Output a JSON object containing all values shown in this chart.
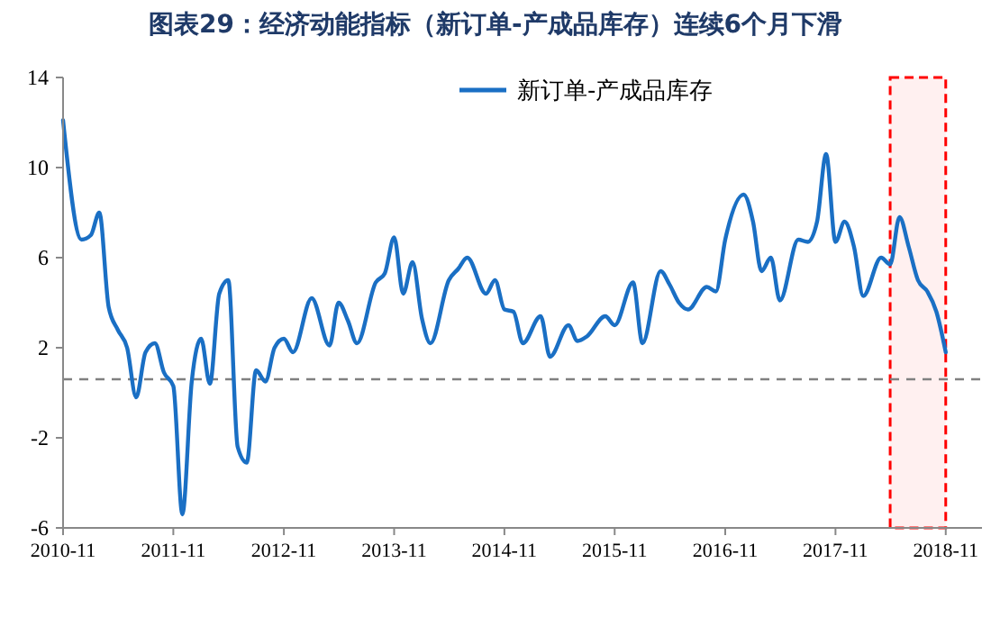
{
  "chart_data": {
    "type": "line",
    "title": "图表29：经济动能指标（新订单-产成品库存）连续6个月下滑",
    "x": [
      "2010-11",
      "2011-01",
      "2011-02",
      "2011-03",
      "2011-04",
      "2011-05",
      "2011-06",
      "2011-07",
      "2011-08",
      "2011-09",
      "2011-10",
      "2011-11",
      "2011-12",
      "2012-01",
      "2012-02",
      "2012-03",
      "2012-04",
      "2012-05",
      "2012-06",
      "2012-07",
      "2012-08",
      "2012-09",
      "2012-10",
      "2012-11",
      "2012-12",
      "2013-02",
      "2013-04",
      "2013-05",
      "2013-06",
      "2013-07",
      "2013-09",
      "2013-10",
      "2013-11",
      "2013-12",
      "2014-01",
      "2014-02",
      "2014-03",
      "2014-05",
      "2014-06",
      "2014-07",
      "2014-09",
      "2014-10",
      "2014-11",
      "2014-12",
      "2015-01",
      "2015-03",
      "2015-04",
      "2015-06",
      "2015-07",
      "2015-08",
      "2015-10",
      "2015-11",
      "2016-01",
      "2016-02",
      "2016-04",
      "2016-05",
      "2016-06",
      "2016-07",
      "2016-09",
      "2016-10",
      "2016-11",
      "2017-01",
      "2017-02",
      "2017-03",
      "2017-04",
      "2017-05",
      "2017-07",
      "2017-08",
      "2017-09",
      "2017-10",
      "2017-11",
      "2017-12",
      "2018-01",
      "2018-02",
      "2018-04",
      "2018-05",
      "2018-06",
      "2018-07",
      "2018-08",
      "2018-09",
      "2018-10",
      "2018-11"
    ],
    "series": [
      {
        "name": "新订单-产成品库存",
        "color": "#1a6fc4",
        "values": [
          12.1,
          6.8,
          7.0,
          8.0,
          3.8,
          2.8,
          2.0,
          -0.2,
          1.8,
          2.2,
          0.9,
          0.3,
          -5.4,
          0.5,
          2.4,
          0.4,
          4.4,
          5.0,
          -2.4,
          -3.1,
          1.0,
          0.5,
          2.0,
          2.4,
          1.8,
          4.2,
          2.1,
          4.0,
          3.2,
          2.2,
          4.9,
          5.3,
          6.9,
          4.4,
          5.8,
          3.3,
          2.2,
          5.0,
          5.5,
          6.0,
          4.4,
          5.0,
          3.7,
          3.6,
          2.2,
          3.4,
          1.6,
          3.0,
          2.3,
          2.5,
          3.4,
          3.0,
          4.9,
          2.2,
          5.4,
          4.8,
          4.0,
          3.7,
          4.7,
          4.5,
          6.8,
          8.8,
          7.6,
          5.4,
          6.0,
          4.1,
          6.8,
          6.7,
          7.6,
          10.6,
          6.7,
          7.6,
          6.5,
          4.3,
          6.0,
          5.7,
          7.8,
          6.5,
          5.0,
          4.5,
          3.6,
          1.8
        ]
      }
    ],
    "xlim": [
      "2010-11",
      "2019-03"
    ],
    "xticks": [
      {
        "value": "2010-11",
        "label": "2010-11"
      },
      {
        "value": "2011-11",
        "label": "2011-11"
      },
      {
        "value": "2012-11",
        "label": "2012-11"
      },
      {
        "value": "2013-11",
        "label": "2013-11"
      },
      {
        "value": "2014-11",
        "label": "2014-11"
      },
      {
        "value": "2015-11",
        "label": "2015-11"
      },
      {
        "value": "2016-11",
        "label": "2016-11"
      },
      {
        "value": "2017-11",
        "label": "2017-11"
      },
      {
        "value": "2018-11",
        "label": "2018-11"
      }
    ],
    "ylim": [
      -6,
      14
    ],
    "yticks": [
      -6,
      -2,
      2,
      6,
      10,
      14
    ],
    "ref_lines": [
      {
        "axis": "y",
        "value": 0.6,
        "color": "#808080",
        "line_style": "dashed"
      }
    ],
    "bands": [
      {
        "axis": "x",
        "from": "2018-05",
        "to": "2018-11",
        "color": "#ff0000"
      }
    ],
    "legend": "top",
    "grid": false,
    "line_style": "solid",
    "marker": "none"
  }
}
